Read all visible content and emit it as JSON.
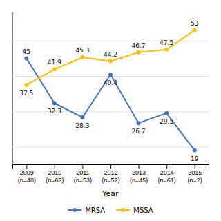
{
  "chart_data": {
    "type": "line",
    "xlabel": "Year",
    "categories": [
      "2009\n(n=40)",
      "2010\n(n=62)",
      "2011\n(n=53)",
      "2012\n(n=52)",
      "2013\n(n=45)",
      "2014\n(n=61)",
      "2015\n(n=?)"
    ],
    "series": [
      {
        "name": "MRSA",
        "color": "#4472C4",
        "marker": "circle",
        "values": [
          45.0,
          32.3,
          28.3,
          40.4,
          26.7,
          29.5,
          19.0
        ]
      },
      {
        "name": "MSSA",
        "color": "#FFC000",
        "marker": "circle",
        "values": [
          37.5,
          41.9,
          45.3,
          44.2,
          46.7,
          47.5,
          53.0
        ]
      }
    ],
    "ylim": [
      15,
      58
    ],
    "yticks": [
      20,
      30,
      40,
      50
    ],
    "grid": true,
    "legend": "bottom",
    "data_labels": true,
    "tick_labels": "x"
  }
}
